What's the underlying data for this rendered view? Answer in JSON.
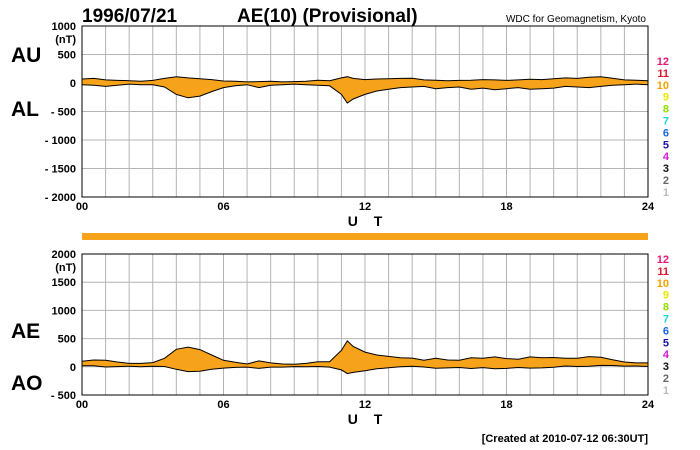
{
  "header": {
    "date": "1996/07/21",
    "title": "AE(10) (Provisional)",
    "source": "WDC for Geomagnetism, Kyoto"
  },
  "footer": {
    "created": "[Created at 2010-07-12 06:30UT]"
  },
  "colors": {
    "fill": "#F7A21B",
    "grid": "#b4b4b4",
    "line": "#000000",
    "quality_bar": "#F7A21B"
  },
  "station_labels": [
    {
      "text": "12",
      "color": "#e6177a"
    },
    {
      "text": "11",
      "color": "#e0162b"
    },
    {
      "text": "10",
      "color": "#f5a000"
    },
    {
      "text": "9",
      "color": "#e8e800"
    },
    {
      "text": "8",
      "color": "#8fe000"
    },
    {
      "text": "7",
      "color": "#17d6e0"
    },
    {
      "text": "6",
      "color": "#1765e6"
    },
    {
      "text": "5",
      "color": "#1a12a8"
    },
    {
      "text": "4",
      "color": "#d617d6"
    },
    {
      "text": "3",
      "color": "#111111"
    },
    {
      "text": "2",
      "color": "#666666"
    },
    {
      "text": "1",
      "color": "#bbbbbb"
    }
  ],
  "chart_data": [
    {
      "type": "area",
      "name": "AU/AL panel",
      "left_labels": [
        "AU",
        "AL"
      ],
      "unit": "(nT)",
      "xlabel": "U T",
      "xlim": [
        0,
        24
      ],
      "ylim": [
        -2000,
        1000
      ],
      "x_ticks": [
        "00",
        "06",
        "12",
        "18",
        "24"
      ],
      "y_ticks": [
        "1000",
        "500",
        "0",
        "- 500",
        "- 1000",
        "- 1500",
        "- 2000"
      ],
      "series": [
        {
          "name": "AU",
          "x": [
            0,
            0.5,
            1,
            1.5,
            2,
            2.5,
            3,
            3.5,
            4,
            4.5,
            5,
            5.5,
            6,
            6.5,
            7,
            7.5,
            8,
            8.5,
            9,
            9.5,
            10,
            10.5,
            11,
            11.25,
            11.5,
            12,
            12.5,
            13,
            13.5,
            14,
            14.5,
            15,
            15.5,
            16,
            16.5,
            17,
            17.5,
            18,
            18.5,
            19,
            19.5,
            20,
            20.5,
            21,
            21.5,
            22,
            22.5,
            23,
            23.5,
            24
          ],
          "values": [
            70,
            80,
            55,
            45,
            40,
            30,
            45,
            80,
            110,
            90,
            75,
            60,
            35,
            30,
            20,
            25,
            30,
            20,
            25,
            30,
            50,
            40,
            90,
            110,
            80,
            60,
            70,
            75,
            80,
            85,
            55,
            50,
            40,
            45,
            50,
            60,
            55,
            45,
            55,
            65,
            60,
            75,
            90,
            80,
            100,
            110,
            85,
            55,
            50,
            40
          ]
        },
        {
          "name": "AL",
          "x": [
            0,
            0.5,
            1,
            1.5,
            2,
            2.5,
            3,
            3.5,
            4,
            4.5,
            5,
            5.5,
            6,
            6.5,
            7,
            7.5,
            8,
            8.5,
            9,
            9.5,
            10,
            10.5,
            11,
            11.25,
            11.5,
            12,
            12.5,
            13,
            13.5,
            14,
            14.5,
            15,
            15.5,
            16,
            16.5,
            17,
            17.5,
            18,
            18.5,
            19,
            19.5,
            20,
            20.5,
            21,
            21.5,
            22,
            22.5,
            23,
            23.5,
            24
          ],
          "values": [
            -30,
            -40,
            -60,
            -40,
            -20,
            -30,
            -30,
            -70,
            -200,
            -260,
            -230,
            -150,
            -80,
            -50,
            -30,
            -80,
            -40,
            -30,
            -20,
            -30,
            -40,
            -50,
            -200,
            -350,
            -280,
            -200,
            -140,
            -110,
            -80,
            -70,
            -60,
            -100,
            -80,
            -70,
            -110,
            -90,
            -120,
            -100,
            -80,
            -110,
            -100,
            -90,
            -60,
            -70,
            -80,
            -60,
            -40,
            -30,
            -20,
            -30
          ]
        }
      ]
    },
    {
      "type": "area",
      "name": "AE/AO panel",
      "left_labels": [
        "AE",
        "AO"
      ],
      "unit": "(nT)",
      "xlabel": "U T",
      "xlim": [
        0,
        24
      ],
      "ylim": [
        -500,
        2000
      ],
      "x_ticks": [
        "00",
        "06",
        "12",
        "18",
        "24"
      ],
      "y_ticks": [
        "2000",
        "1500",
        "1000",
        "500",
        "0",
        "- 500"
      ],
      "series": [
        {
          "name": "AE",
          "x": [
            0,
            0.5,
            1,
            1.5,
            2,
            2.5,
            3,
            3.5,
            4,
            4.5,
            5,
            5.5,
            6,
            6.5,
            7,
            7.5,
            8,
            8.5,
            9,
            9.5,
            10,
            10.5,
            11,
            11.25,
            11.5,
            12,
            12.5,
            13,
            13.5,
            14,
            14.5,
            15,
            15.5,
            16,
            16.5,
            17,
            17.5,
            18,
            18.5,
            19,
            19.5,
            20,
            20.5,
            21,
            21.5,
            22,
            22.5,
            23,
            23.5,
            24
          ],
          "values": [
            100,
            120,
            115,
            85,
            60,
            60,
            75,
            150,
            310,
            350,
            305,
            210,
            115,
            80,
            50,
            105,
            70,
            50,
            45,
            60,
            90,
            90,
            290,
            460,
            360,
            260,
            210,
            185,
            160,
            155,
            115,
            150,
            120,
            115,
            160,
            150,
            175,
            145,
            135,
            175,
            160,
            165,
            150,
            150,
            180,
            170,
            125,
            85,
            70,
            70
          ]
        },
        {
          "name": "AO",
          "x": [
            0,
            0.5,
            1,
            1.5,
            2,
            2.5,
            3,
            3.5,
            4,
            4.5,
            5,
            5.5,
            6,
            6.5,
            7,
            7.5,
            8,
            8.5,
            9,
            9.5,
            10,
            10.5,
            11,
            11.25,
            11.5,
            12,
            12.5,
            13,
            13.5,
            14,
            14.5,
            15,
            15.5,
            16,
            16.5,
            17,
            17.5,
            18,
            18.5,
            19,
            19.5,
            20,
            20.5,
            21,
            21.5,
            22,
            22.5,
            23,
            23.5,
            24
          ],
          "values": [
            20,
            20,
            -3,
            3,
            10,
            0,
            8,
            5,
            -45,
            -85,
            -78,
            -45,
            -23,
            -10,
            -5,
            -28,
            -5,
            -5,
            3,
            0,
            5,
            -5,
            -55,
            -120,
            -100,
            -70,
            -35,
            -18,
            0,
            8,
            -3,
            -25,
            -20,
            -13,
            -30,
            -15,
            -33,
            -28,
            -13,
            -23,
            -20,
            -8,
            15,
            5,
            10,
            25,
            23,
            13,
            15,
            5
          ]
        }
      ]
    }
  ]
}
